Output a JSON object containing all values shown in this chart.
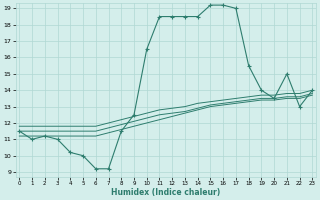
{
  "xlabel": "Humidex (Indice chaleur)",
  "x_values": [
    0,
    1,
    2,
    3,
    4,
    5,
    6,
    7,
    8,
    9,
    10,
    11,
    12,
    13,
    14,
    15,
    16,
    17,
    18,
    19,
    20,
    21,
    22,
    23
  ],
  "y_main": [
    11.5,
    11.0,
    11.2,
    11.0,
    10.2,
    10.0,
    9.2,
    9.2,
    11.5,
    12.5,
    16.5,
    18.5,
    18.5,
    18.5,
    18.5,
    19.2,
    19.2,
    19.0,
    15.5,
    14.0,
    13.5,
    15.0,
    13.0,
    14.0
  ],
  "y_line1": [
    11.2,
    11.2,
    11.2,
    11.2,
    11.2,
    11.2,
    11.2,
    11.4,
    11.6,
    11.8,
    12.0,
    12.2,
    12.4,
    12.6,
    12.8,
    13.0,
    13.1,
    13.2,
    13.3,
    13.4,
    13.4,
    13.5,
    13.5,
    13.7
  ],
  "y_line2": [
    11.5,
    11.5,
    11.5,
    11.5,
    11.5,
    11.5,
    11.5,
    11.7,
    11.9,
    12.1,
    12.3,
    12.5,
    12.6,
    12.7,
    12.9,
    13.1,
    13.2,
    13.3,
    13.4,
    13.5,
    13.5,
    13.6,
    13.6,
    13.8
  ],
  "y_line3": [
    11.8,
    11.8,
    11.8,
    11.8,
    11.8,
    11.8,
    11.8,
    12.0,
    12.2,
    12.4,
    12.6,
    12.8,
    12.9,
    13.0,
    13.2,
    13.3,
    13.4,
    13.5,
    13.6,
    13.7,
    13.7,
    13.8,
    13.8,
    14.0
  ],
  "line_color": "#2e7d6e",
  "bg_color": "#d4eeeb",
  "grid_color": "#b0d8d4",
  "ylim": [
    9,
    19
  ],
  "xlim": [
    0,
    23
  ],
  "yticks": [
    9,
    10,
    11,
    12,
    13,
    14,
    15,
    16,
    17,
    18,
    19
  ],
  "xticks": [
    0,
    1,
    2,
    3,
    4,
    5,
    6,
    7,
    8,
    9,
    10,
    11,
    12,
    13,
    14,
    15,
    16,
    17,
    18,
    19,
    20,
    21,
    22,
    23
  ]
}
